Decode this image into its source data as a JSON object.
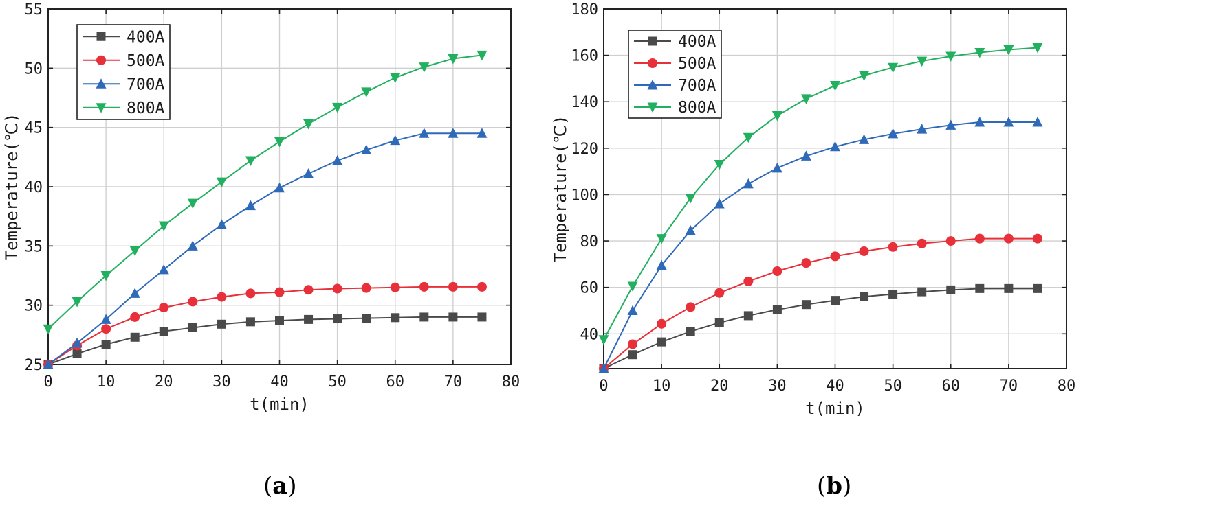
{
  "chart_data": [
    {
      "type": "line",
      "panel_label": "a",
      "xlabel": "t(min)",
      "ylabel": "Temperature(℃)",
      "xlim": [
        0,
        80
      ],
      "ylim": [
        25,
        55
      ],
      "xticks": [
        0,
        10,
        20,
        30,
        40,
        50,
        60,
        70,
        80
      ],
      "yticks": [
        25,
        30,
        35,
        40,
        45,
        50,
        55
      ],
      "grid": true,
      "legend_position": "top-left",
      "x": [
        0,
        5,
        10,
        15,
        20,
        25,
        30,
        35,
        40,
        45,
        50,
        55,
        60,
        65,
        70,
        75
      ],
      "series": [
        {
          "name": "400A",
          "color": "#4a4a4a",
          "marker": "square",
          "values": [
            25.0,
            25.9,
            26.7,
            27.3,
            27.8,
            28.1,
            28.4,
            28.6,
            28.7,
            28.8,
            28.85,
            28.9,
            28.95,
            29.0,
            29.0,
            29.0
          ]
        },
        {
          "name": "500A",
          "color": "#e8303a",
          "marker": "circle",
          "values": [
            25.0,
            26.6,
            28.0,
            29.0,
            29.8,
            30.3,
            30.7,
            31.0,
            31.1,
            31.3,
            31.4,
            31.45,
            31.5,
            31.55,
            31.55,
            31.55
          ]
        },
        {
          "name": "700A",
          "color": "#2e6ab8",
          "marker": "triangle-up",
          "values": [
            25.0,
            26.8,
            28.8,
            31.0,
            33.0,
            35.0,
            36.8,
            38.4,
            39.9,
            41.1,
            42.2,
            43.1,
            43.9,
            44.5,
            44.5,
            44.5
          ]
        },
        {
          "name": "800A",
          "color": "#22b060",
          "marker": "triangle-down",
          "values": [
            28.0,
            30.3,
            32.5,
            34.6,
            36.7,
            38.6,
            40.4,
            42.2,
            43.8,
            45.3,
            46.7,
            48.0,
            49.2,
            50.1,
            50.8,
            51.1
          ]
        }
      ]
    },
    {
      "type": "line",
      "panel_label": "b",
      "xlabel": "t(min)",
      "ylabel": "Temperature(℃)",
      "xlim": [
        0,
        80
      ],
      "ylim": [
        25,
        180
      ],
      "xticks": [
        0,
        10,
        20,
        30,
        40,
        50,
        60,
        70,
        80
      ],
      "yticks": [
        40,
        60,
        80,
        100,
        120,
        140,
        160,
        180
      ],
      "grid": true,
      "legend_position": "top-left",
      "x": [
        0,
        5,
        10,
        15,
        20,
        25,
        30,
        35,
        40,
        45,
        50,
        55,
        60,
        65,
        70,
        75
      ],
      "series": [
        {
          "name": "400A",
          "color": "#4a4a4a",
          "marker": "square",
          "values": [
            25,
            31,
            36.5,
            41,
            44.8,
            47.8,
            50.4,
            52.6,
            54.4,
            56,
            57.1,
            58.1,
            58.9,
            59.5,
            59.5,
            59.5
          ]
        },
        {
          "name": "500A",
          "color": "#e8303a",
          "marker": "circle",
          "values": [
            25,
            35.5,
            44.3,
            51.5,
            57.6,
            62.6,
            67,
            70.5,
            73.4,
            75.6,
            77.4,
            78.9,
            80,
            81,
            81,
            81
          ]
        },
        {
          "name": "700A",
          "color": "#2e6ab8",
          "marker": "triangle-up",
          "values": [
            25,
            50,
            69.5,
            84.5,
            96,
            104.6,
            111.4,
            116.6,
            120.6,
            123.7,
            126.2,
            128.2,
            129.9,
            131.2,
            131.2,
            131.2
          ]
        },
        {
          "name": "800A",
          "color": "#22b060",
          "marker": "triangle-down",
          "values": [
            37.5,
            60.5,
            81,
            98.5,
            113,
            124.6,
            134,
            141.3,
            147,
            151.3,
            154.8,
            157.5,
            159.6,
            161.2,
            162.4,
            163.3
          ]
        }
      ]
    }
  ]
}
